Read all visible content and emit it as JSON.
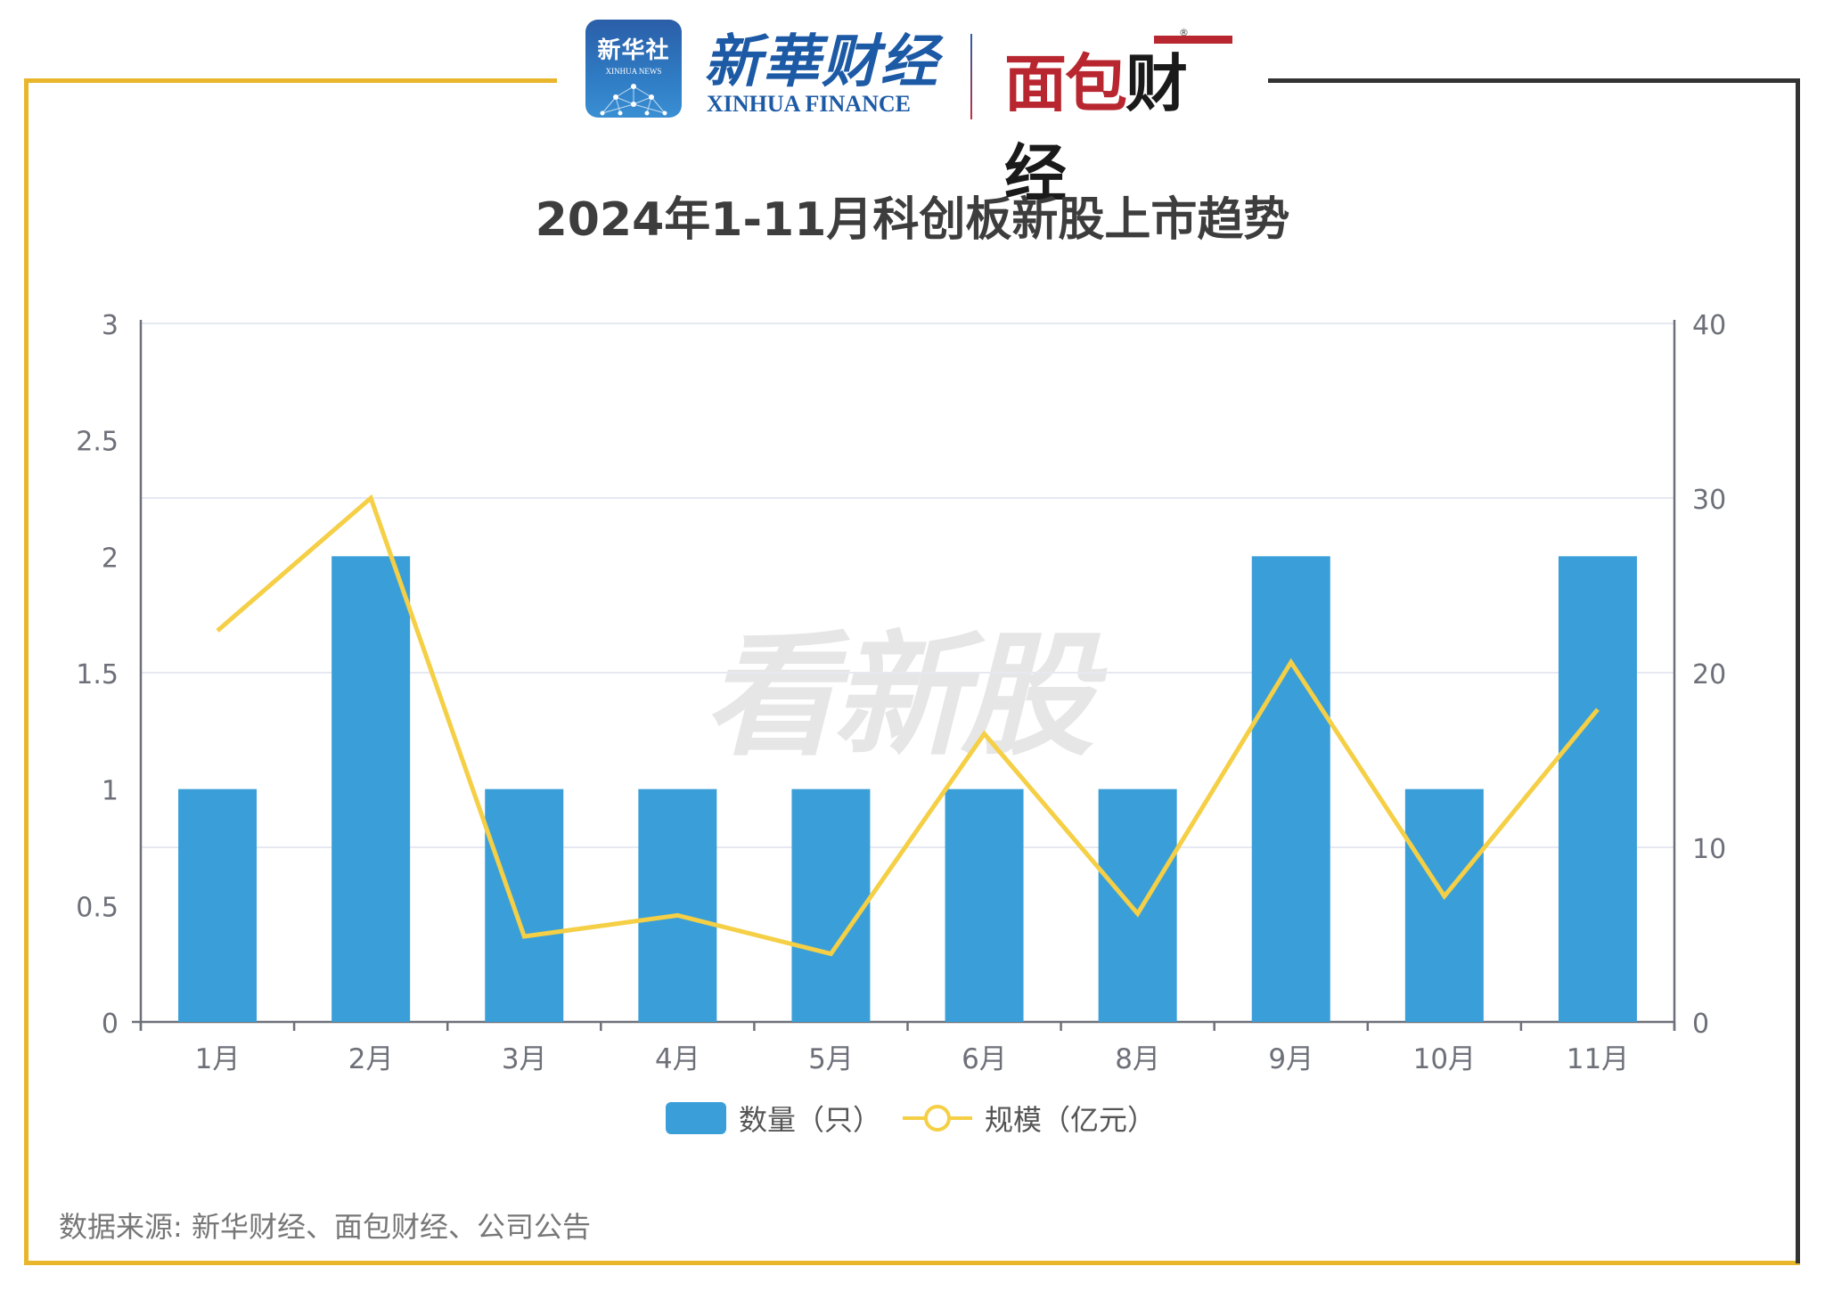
{
  "header": {
    "logos": {
      "xinhua_badge_cn": "新华社",
      "xinhua_badge_en": "XINHUA NEWS",
      "xinhua_finance_cn": "新華财经",
      "xinhua_finance_en": "XINHUA FINANCE",
      "mianbao_part1": "面包",
      "mianbao_part2": "财经",
      "registered_mark": "®"
    }
  },
  "title": "2024年1-11月科创板新股上市趋势",
  "watermark": "看新股",
  "footer": {
    "source": "数据来源: 新华财经、面包财经、公司公告"
  },
  "colors": {
    "frame_yellow": "#E9B52A",
    "frame_dark": "#333333",
    "bar_blue": "#3A9FD8",
    "line_yellow": "#F5CF45",
    "grid": "#E6E9F2",
    "axis": "#6E7079",
    "axis_label": "#6E7079"
  },
  "legend": {
    "items": [
      {
        "label": "数量（只）",
        "type": "bar"
      },
      {
        "label": "规模（亿元）",
        "type": "line"
      }
    ]
  },
  "chart_data": {
    "type": "bar",
    "title": "2024年1-11月科创板新股上市趋势",
    "xlabel": "",
    "ylabel": "",
    "categories": [
      "1月",
      "2月",
      "3月",
      "4月",
      "5月",
      "6月",
      "8月",
      "9月",
      "10月",
      "11月"
    ],
    "series": [
      {
        "name": "数量（只）",
        "type": "bar",
        "axis": "left",
        "values": [
          1,
          2,
          1,
          1,
          1,
          1,
          1,
          2,
          1,
          2
        ]
      },
      {
        "name": "规模（亿元）",
        "type": "line",
        "axis": "right",
        "values": [
          22.4,
          30.0,
          4.9,
          6.1,
          3.9,
          16.5,
          6.2,
          20.6,
          7.2,
          17.9
        ]
      }
    ],
    "left_axis": {
      "range": [
        0,
        3
      ],
      "ticks": [
        "0",
        "0.5",
        "1",
        "1.5",
        "2",
        "2.5",
        "3"
      ]
    },
    "right_axis": {
      "range": [
        0,
        40
      ],
      "ticks": [
        "0",
        "10",
        "20",
        "30",
        "40"
      ]
    },
    "grid": true,
    "legend_position": "bottom"
  }
}
